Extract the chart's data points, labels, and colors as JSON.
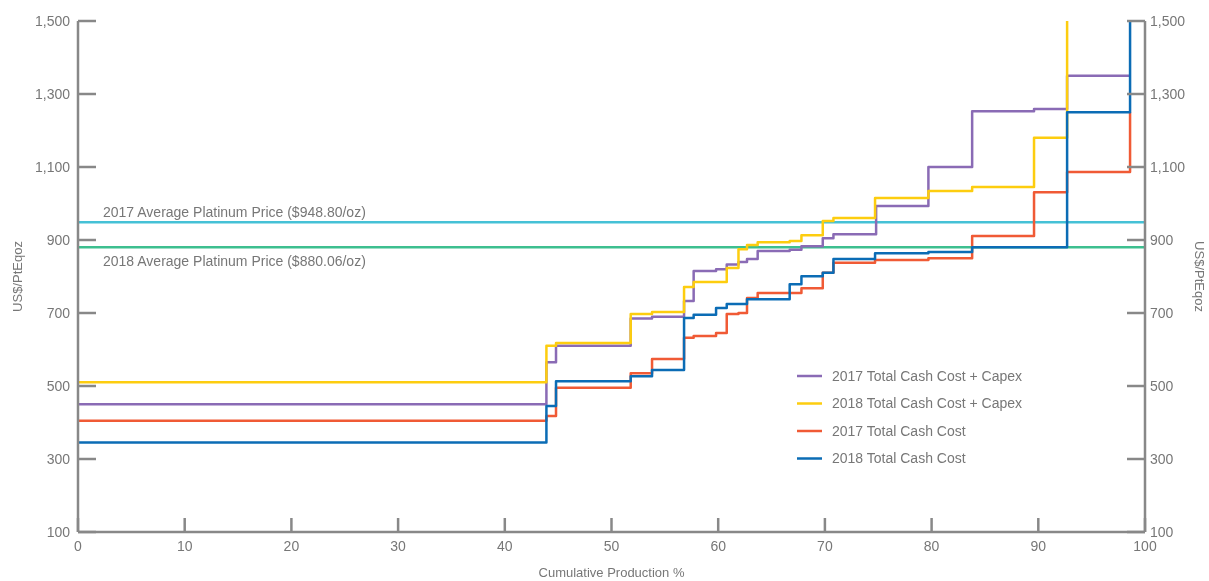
{
  "chart_data": {
    "type": "step",
    "xlabel": "Cumulative Production %",
    "ylabel": "US$/PtEqoz",
    "y2label": "US$/PtEqoz",
    "xlim": [
      0,
      100
    ],
    "xticks": [
      0,
      10,
      20,
      30,
      40,
      50,
      60,
      70,
      80,
      90,
      100
    ],
    "ylim": [
      100,
      1500
    ],
    "yticks": [
      100,
      300,
      500,
      700,
      900,
      {
        "value": 1100,
        "label": "1,100"
      },
      {
        "value": 1300,
        "label": "1,300"
      },
      {
        "value": 1500,
        "label": "1,500"
      }
    ],
    "y2lim": [
      100,
      1500
    ],
    "y2ticks": [
      100,
      300,
      500,
      700,
      900,
      {
        "value": 1100,
        "label": "1,100"
      },
      {
        "value": 1300,
        "label": "1,300"
      },
      {
        "value": 1500,
        "label": "1,500"
      }
    ],
    "legend": "bottom right",
    "marker": "none",
    "series": [
      {
        "name": "2017 Total Cash Cost + Capex",
        "color": "#8a6bb5",
        "x": [
          0,
          43.9,
          44.8,
          51.8,
          53.8,
          56.8,
          57.7,
          59.8,
          60.8,
          61.9,
          62.7,
          63.7,
          66.7,
          67.8,
          69.8,
          70.8,
          74.8,
          79.7,
          83.8,
          89.6,
          92.7,
          98.6
        ],
        "values": [
          450,
          565,
          610,
          685,
          690,
          733,
          815,
          820,
          833,
          840,
          848,
          870,
          873,
          883,
          905,
          916,
          993,
          1100,
          1253,
          1259,
          1350,
          1350
        ]
      },
      {
        "name": "2018 Total Cash Cost + Capex",
        "color": "#fdcd0f",
        "x": [
          0,
          43.9,
          44.8,
          51.8,
          53.8,
          56.8,
          57.7,
          60.8,
          61.9,
          62.7,
          63.7,
          66.7,
          67.8,
          69.8,
          70.8,
          74.7,
          79.7,
          83.8,
          89.6,
          92.7
        ],
        "values": [
          510,
          610,
          618,
          697,
          703,
          771,
          785,
          823,
          875,
          886,
          894,
          897,
          913,
          952,
          960,
          1015,
          1034,
          1045,
          1180,
          1500
        ]
      },
      {
        "name": "2017 Total Cash Cost",
        "color": "#f05a35",
        "x": [
          0,
          43.9,
          44.8,
          51.8,
          53.8,
          56.8,
          57.7,
          59.8,
          60.8,
          61.9,
          62.7,
          63.7,
          66.7,
          67.8,
          69.8,
          70.8,
          74.7,
          79.7,
          83.8,
          89.6,
          92.7,
          98.6
        ],
        "values": [
          405,
          418,
          495,
          535,
          574,
          632,
          637,
          645,
          697,
          700,
          741,
          755,
          755,
          768,
          810,
          838,
          845,
          850,
          911,
          1031,
          1086,
          1250
        ]
      },
      {
        "name": "2018 Total Cash Cost",
        "color": "#0b6cb5",
        "x": [
          0,
          43.9,
          44.8,
          51.8,
          53.8,
          56.8,
          57.7,
          59.8,
          60.8,
          62.7,
          66.7,
          67.8,
          69.8,
          70.8,
          74.7,
          79.7,
          83.8,
          92.7,
          98.6
        ],
        "values": [
          345,
          445,
          513,
          527,
          544,
          686,
          695,
          714,
          725,
          738,
          779,
          801,
          810,
          848,
          864,
          867,
          880,
          1250,
          1500
        ]
      }
    ],
    "ref_lines": [
      {
        "axis": "y",
        "value": 948.8,
        "label": "2017 Average Platinum Price ($948.80/oz)",
        "color": "#45c1d6"
      },
      {
        "axis": "y",
        "value": 880.06,
        "label": "2018 Average Platinum Price ($880.06/oz)",
        "color": "#3dbf8f"
      }
    ]
  }
}
